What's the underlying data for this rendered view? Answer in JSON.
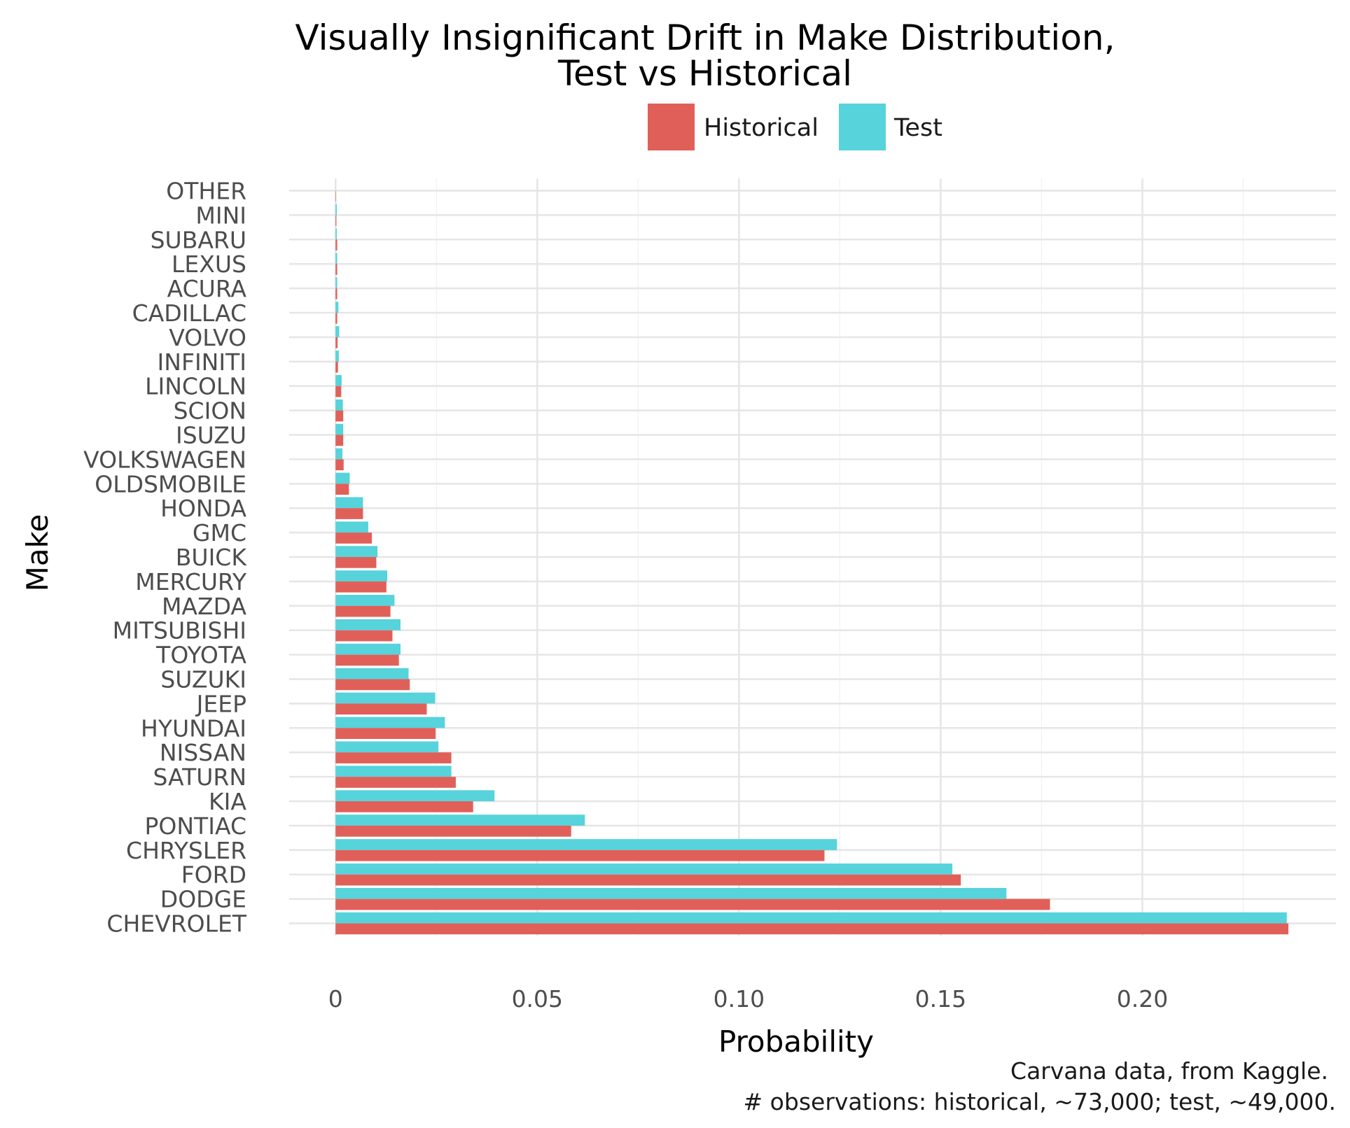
{
  "chart_data": {
    "type": "bar",
    "orientation": "horizontal",
    "title_lines": [
      "Visually Insignificant Drift in Make Distribution,",
      "Test vs Historical"
    ],
    "xlabel": "Probability",
    "ylabel": "Make",
    "categories": [
      "OTHER",
      "MINI",
      "SUBARU",
      "LEXUS",
      "ACURA",
      "CADILLAC",
      "VOLVO",
      "INFINITI",
      "LINCOLN",
      "SCION",
      "ISUZU",
      "VOLKSWAGEN",
      "OLDSMOBILE",
      "HONDA",
      "GMC",
      "BUICK",
      "MERCURY",
      "MAZDA",
      "MITSUBISHI",
      "TOYOTA",
      "SUZUKI",
      "JEEP",
      "HYUNDAI",
      "NISSAN",
      "SATURN",
      "KIA",
      "PONTIAC",
      "CHRYSLER",
      "FORD",
      "DODGE",
      "CHEVROLET"
    ],
    "series": [
      {
        "name": "Historical",
        "color": "#E06059",
        "values": [
          0.0001,
          0.0002,
          0.0004,
          0.0004,
          0.0004,
          0.0004,
          0.0005,
          0.0006,
          0.0014,
          0.0019,
          0.0019,
          0.002,
          0.0033,
          0.0068,
          0.009,
          0.0101,
          0.0126,
          0.0136,
          0.0141,
          0.0157,
          0.0184,
          0.0226,
          0.0248,
          0.0287,
          0.0298,
          0.0341,
          0.0584,
          0.1212,
          0.155,
          0.1771,
          0.2362
        ]
      },
      {
        "name": "Test",
        "color": "#56D3DB",
        "values": [
          0.0,
          0.0003,
          0.0003,
          0.0004,
          0.0004,
          0.0007,
          0.0009,
          0.0008,
          0.0015,
          0.0018,
          0.0019,
          0.0017,
          0.0035,
          0.0068,
          0.0081,
          0.0104,
          0.0128,
          0.0146,
          0.0161,
          0.0161,
          0.0181,
          0.0247,
          0.0271,
          0.0255,
          0.0287,
          0.0394,
          0.0618,
          0.1243,
          0.1529,
          0.1663,
          0.2358
        ]
      }
    ],
    "x_ticks": [
      0,
      0.05,
      0.1,
      0.15,
      0.2
    ],
    "x_tick_labels": [
      "0",
      "0.05",
      "0.10",
      "0.15",
      "0.20"
    ],
    "xlim": [
      -0.0115,
      0.248
    ],
    "grid": true,
    "legend_position": "top",
    "caption_lines": [
      "Carvana data, from Kaggle.",
      "# observations: historical, ~73,000; test, ~49,000."
    ]
  }
}
